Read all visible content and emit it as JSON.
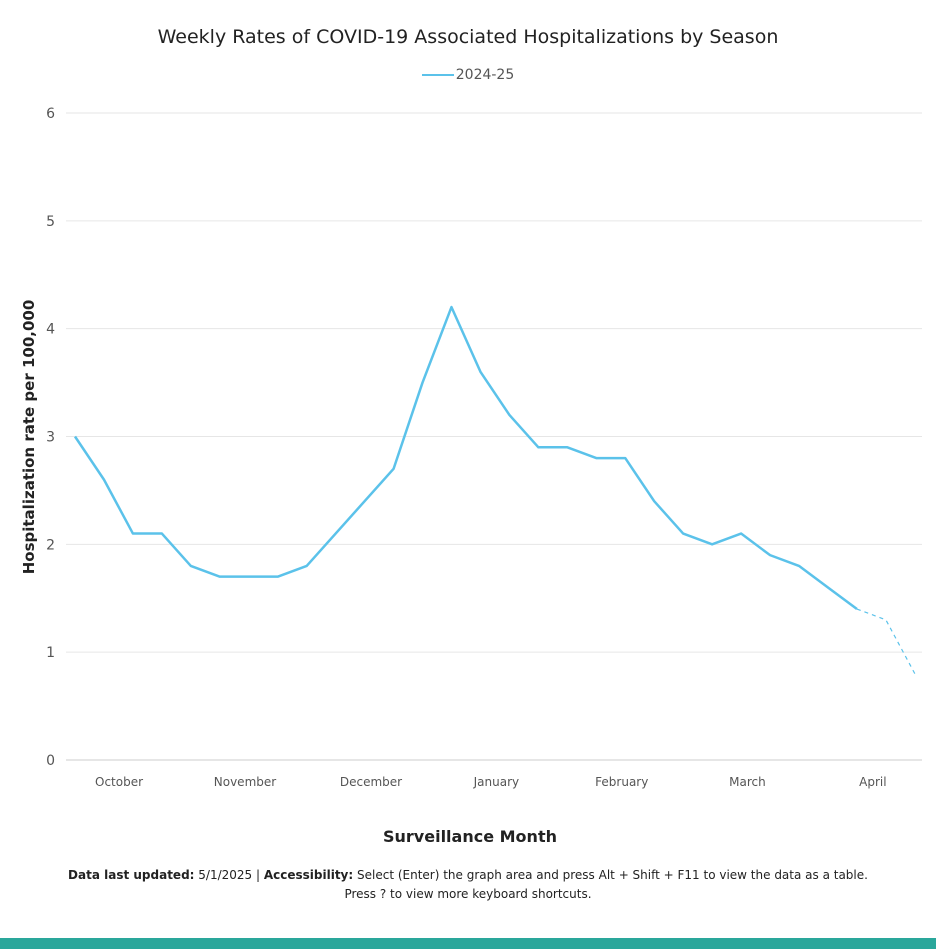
{
  "chart_data": {
    "type": "line",
    "title": "Weekly Rates of COVID-19 Associated Hospitalizations by Season",
    "xlabel": "Surveillance Month",
    "ylabel": "Hospitalization rate per 100,000",
    "ylim": [
      0,
      6
    ],
    "yticks": [
      "0",
      "1",
      "2",
      "3",
      "4",
      "5",
      "6"
    ],
    "xtick_labels": [
      "October",
      "November",
      "December",
      "January",
      "February",
      "March",
      "April"
    ],
    "grid": true,
    "legend_position": "top",
    "series": [
      {
        "name": "2024-25",
        "color": "#5bc2ea",
        "values": [
          3.0,
          2.6,
          2.1,
          2.1,
          1.8,
          1.7,
          1.7,
          1.7,
          1.8,
          2.1,
          2.4,
          2.7,
          3.5,
          4.2,
          3.6,
          3.2,
          2.9,
          2.9,
          2.8,
          2.8,
          2.4,
          2.1,
          2.0,
          2.1,
          1.9,
          1.8,
          1.6,
          1.4,
          1.3,
          0.8
        ],
        "provisional_last_points": 2
      }
    ]
  },
  "footer": {
    "updated_label": "Data last updated:",
    "updated_value": " 5/1/2025 | ",
    "accessibility_label": "Accessibility:",
    "accessibility_text": " Select (Enter) the graph area and press Alt + Shift + F11 to view the data as a table.",
    "shortcuts_text": "Press ? to view more keyboard shortcuts."
  }
}
